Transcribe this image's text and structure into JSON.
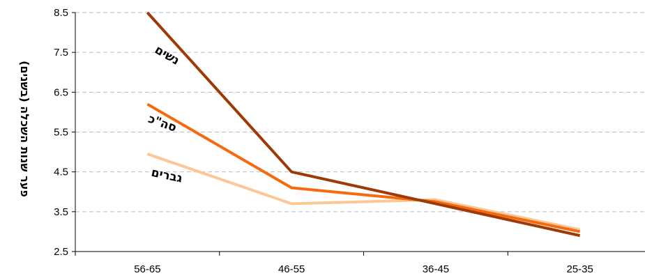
{
  "chart_data": {
    "type": "line",
    "categories": [
      "56-65",
      "46-55",
      "36-45",
      "25-35"
    ],
    "series": [
      {
        "name": "נשים",
        "color": "#9e3a06",
        "values": [
          8.5,
          4.5,
          3.7,
          2.9
        ]
      },
      {
        "name": "סה\"כ",
        "color": "#f46a0d",
        "values": [
          6.2,
          4.1,
          3.75,
          3.0
        ]
      },
      {
        "name": "גברים",
        "color": "#fbc797",
        "values": [
          4.95,
          3.7,
          3.8,
          3.05
        ]
      }
    ],
    "ylabel": "פער שנות השכלה (בשנים)",
    "xlabel": "",
    "ylim": [
      2.5,
      8.5
    ],
    "yticks": [
      "8.5",
      "7.5",
      "6.5",
      "5.5",
      "4.5",
      "3.5",
      "2.5"
    ],
    "grid": true
  }
}
